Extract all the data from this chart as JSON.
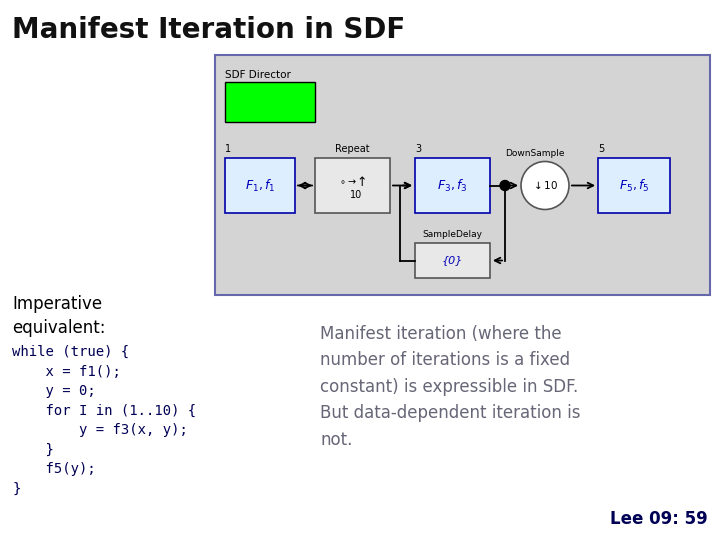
{
  "title": "Manifest Iteration in SDF",
  "title_fontsize": 20,
  "bg_color": "#ffffff",
  "imperative_label": "Imperative\nequivalent:",
  "imperative_fontsize": 12,
  "code_text": "while (true) {\n    x = f1();\n    y = 0;\n    for I in (1..10) {\n        y = f3(x, y);\n    }\n    f5(y);\n}",
  "code_fontsize": 10,
  "rhs_text": "Manifest iteration (where the\nnumber of iterations is a fixed\nconstant) is expressible in SDF.\nBut data-dependent iteration is\nnot.",
  "rhs_fontsize": 12,
  "footer_text": "Lee 09: 59",
  "footer_fontsize": 12,
  "diagram_bg": "#d4d4d4",
  "diagram_border": "#6666aa",
  "green_color": "#00ff00",
  "block_color": "#ddeeff",
  "block_border": "#0000aa",
  "label_color_blue": "#0000bb",
  "sdf_director_label": "SDF Director",
  "repeat_label": "Repeat",
  "downsample_label": "DownSample",
  "sampledelay_label": "SampleDelay"
}
